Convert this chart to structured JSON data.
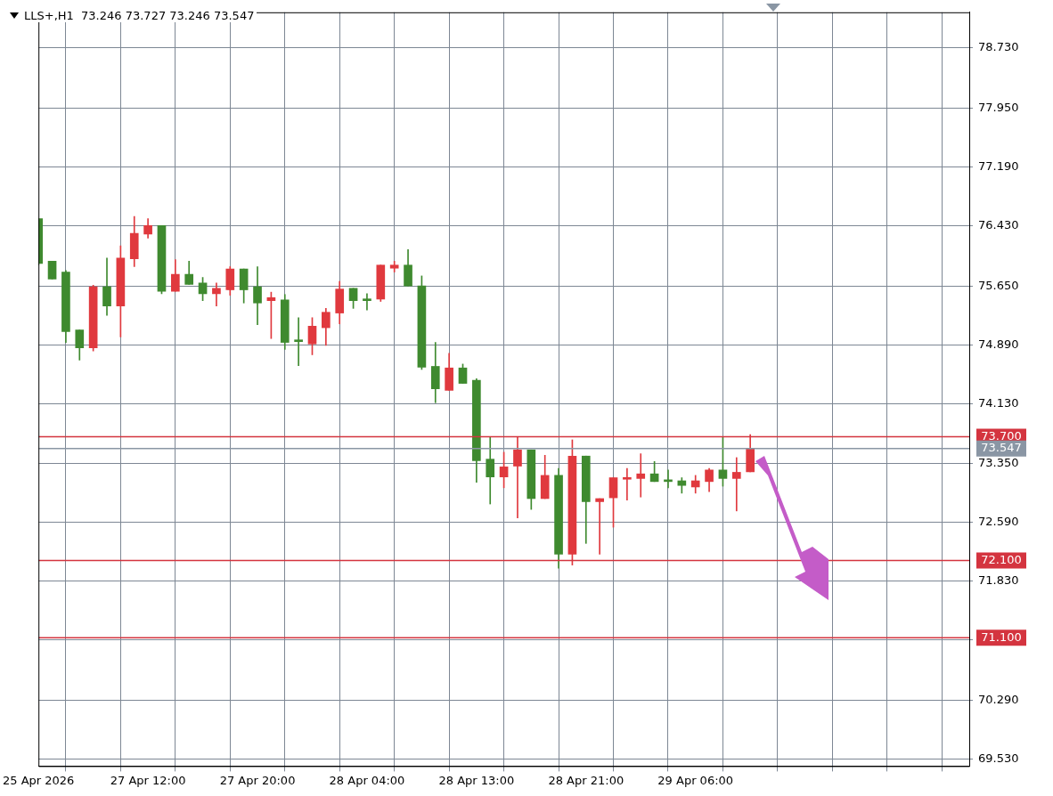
{
  "chart_data": {
    "type": "candlestick",
    "title": "LLS+,H1  73.246 73.727 73.246 73.547",
    "categories": [
      "25 Apr 2026",
      null,
      null,
      null,
      null,
      null,
      null,
      null,
      "27 Apr 12:00",
      null,
      null,
      null,
      null,
      null,
      null,
      null,
      "27 Apr 20:00",
      null,
      null,
      null,
      null,
      null,
      null,
      null,
      "28 Apr 04:00",
      null,
      null,
      null,
      null,
      null,
      null,
      null,
      "28 Apr 13:00",
      null,
      null,
      null,
      null,
      null,
      null,
      null,
      "28 Apr 21:00",
      null,
      null,
      null,
      null,
      null,
      null,
      null,
      "29 Apr 06:00",
      null,
      null,
      null,
      null,
      null,
      null,
      null,
      null,
      null,
      null,
      null,
      null,
      null,
      null,
      null,
      null,
      null,
      null,
      null,
      null
    ],
    "ohlc": [
      [
        76.52,
        76.52,
        75.92,
        75.94
      ],
      [
        75.97,
        75.97,
        75.74,
        75.74
      ],
      [
        75.83,
        75.85,
        74.92,
        75.06
      ],
      [
        75.08,
        75.08,
        74.69,
        74.85
      ],
      [
        74.85,
        75.66,
        74.81,
        75.64
      ],
      [
        75.64,
        76.01,
        75.27,
        75.39
      ],
      [
        75.39,
        76.17,
        74.99,
        76.01
      ],
      [
        76.0,
        76.55,
        75.9,
        76.33
      ],
      [
        76.32,
        76.52,
        76.27,
        76.43
      ],
      [
        76.43,
        76.43,
        75.55,
        75.58
      ],
      [
        75.58,
        75.99,
        75.58,
        75.8
      ],
      [
        75.8,
        75.97,
        75.67,
        75.67
      ],
      [
        75.69,
        75.76,
        75.46,
        75.55
      ],
      [
        75.55,
        75.69,
        75.39,
        75.62
      ],
      [
        75.6,
        75.9,
        75.53,
        75.87
      ],
      [
        75.87,
        75.87,
        75.43,
        75.6
      ],
      [
        75.64,
        75.9,
        75.15,
        75.43
      ],
      [
        75.46,
        75.57,
        74.97,
        75.5
      ],
      [
        75.47,
        75.54,
        74.83,
        74.92
      ],
      [
        74.94,
        75.24,
        74.62,
        74.93
      ],
      [
        74.9,
        75.24,
        74.76,
        75.13
      ],
      [
        75.11,
        75.36,
        74.88,
        75.31
      ],
      [
        75.3,
        75.71,
        75.16,
        75.61
      ],
      [
        75.62,
        75.62,
        75.36,
        75.46
      ],
      [
        75.47,
        75.55,
        75.34,
        75.46
      ],
      [
        75.48,
        75.92,
        75.45,
        75.92
      ],
      [
        75.88,
        75.97,
        75.83,
        75.92
      ],
      [
        75.92,
        76.12,
        75.65,
        75.65
      ],
      [
        75.65,
        75.78,
        74.57,
        74.6
      ],
      [
        74.61,
        74.92,
        74.14,
        74.32
      ],
      [
        74.3,
        74.78,
        74.3,
        74.59
      ],
      [
        74.59,
        74.64,
        74.39,
        74.39
      ],
      [
        74.43,
        74.45,
        73.11,
        73.39
      ],
      [
        73.41,
        73.7,
        72.83,
        73.18
      ],
      [
        73.18,
        73.5,
        73.04,
        73.31
      ],
      [
        73.32,
        73.7,
        72.65,
        73.53
      ],
      [
        73.53,
        73.53,
        72.76,
        72.9
      ],
      [
        72.9,
        73.46,
        72.9,
        73.2
      ],
      [
        73.2,
        73.29,
        72.0,
        72.18
      ],
      [
        72.18,
        73.66,
        72.04,
        73.45
      ],
      [
        73.45,
        73.45,
        72.32,
        72.86
      ],
      [
        72.86,
        72.9,
        72.18,
        72.9
      ],
      [
        72.91,
        73.17,
        72.53,
        73.17
      ],
      [
        73.15,
        73.29,
        72.88,
        73.17
      ],
      [
        73.16,
        73.48,
        72.92,
        73.22
      ],
      [
        73.22,
        73.38,
        73.12,
        73.12
      ],
      [
        73.13,
        73.27,
        73.04,
        73.12
      ],
      [
        73.13,
        73.17,
        72.97,
        73.07
      ],
      [
        73.05,
        73.2,
        72.97,
        73.13
      ],
      [
        73.12,
        73.29,
        72.99,
        73.27
      ],
      [
        73.27,
        73.69,
        73.06,
        73.16
      ],
      [
        73.16,
        73.43,
        72.74,
        73.24
      ],
      [
        73.246,
        73.727,
        73.246,
        73.547
      ],
      null,
      null,
      null,
      null,
      null,
      null,
      null,
      null,
      null,
      null,
      null,
      null,
      null,
      null,
      null,
      null
    ],
    "colors": [
      "#3f8a2f",
      "#3f8a2f",
      "#3f8a2f",
      "#3f8a2f",
      "#e0393e",
      "#3f8a2f",
      "#e0393e",
      "#e0393e",
      "#e0393e",
      "#3f8a2f",
      "#e0393e",
      "#3f8a2f",
      "#3f8a2f",
      "#e0393e",
      "#e0393e",
      "#3f8a2f",
      "#3f8a2f",
      "#e0393e",
      "#3f8a2f",
      "#3f8a2f",
      "#e0393e",
      "#e0393e",
      "#e0393e",
      "#3f8a2f",
      "#3f8a2f",
      "#e0393e",
      "#e0393e",
      "#3f8a2f",
      "#3f8a2f",
      "#3f8a2f",
      "#e0393e",
      "#3f8a2f",
      "#3f8a2f",
      "#3f8a2f",
      "#e0393e",
      "#e0393e",
      "#3f8a2f",
      "#e0393e",
      "#3f8a2f",
      "#e0393e",
      "#3f8a2f",
      "#e0393e",
      "#e0393e",
      "#e0393e",
      "#e0393e",
      "#3f8a2f",
      "#3f8a2f",
      "#3f8a2f",
      "#e0393e",
      "#e0393e",
      "#3f8a2f",
      "#e0393e",
      "#e0393e",
      null,
      null,
      null,
      null,
      null,
      null,
      null,
      null,
      null,
      null,
      null,
      null,
      null,
      null,
      null,
      null
    ],
    "ylim": [
      69.44,
      79.19
    ],
    "yticks": [
      {
        "value": 78.73,
        "label": "78.730"
      },
      {
        "value": 77.95,
        "label": "77.950"
      },
      {
        "value": 77.19,
        "label": "77.190"
      },
      {
        "value": 76.43,
        "label": "76.430"
      },
      {
        "value": 75.65,
        "label": "75.650"
      },
      {
        "value": 74.89,
        "label": "74.890"
      },
      {
        "value": 74.13,
        "label": "74.130"
      },
      {
        "value": 73.35,
        "label": "73.350"
      },
      {
        "value": 72.59,
        "label": "72.590"
      },
      {
        "value": 71.83,
        "label": "71.830"
      },
      {
        "value": 71.07,
        "label": null
      },
      {
        "value": 70.29,
        "label": "70.290"
      },
      {
        "value": 69.53,
        "label": "69.530"
      }
    ],
    "ref_lines": [
      {
        "axis": "y",
        "value": 73.7,
        "label": "73.700",
        "color": "#d4343f"
      },
      {
        "axis": "y",
        "value": 73.547,
        "label": "73.547",
        "color": "#8a96a4"
      },
      {
        "axis": "y",
        "value": 72.1,
        "label": "72.100",
        "color": "#d4343f"
      },
      {
        "axis": "y",
        "value": 71.1,
        "label": "71.100",
        "color": "#d4343f"
      }
    ],
    "grid": true
  }
}
